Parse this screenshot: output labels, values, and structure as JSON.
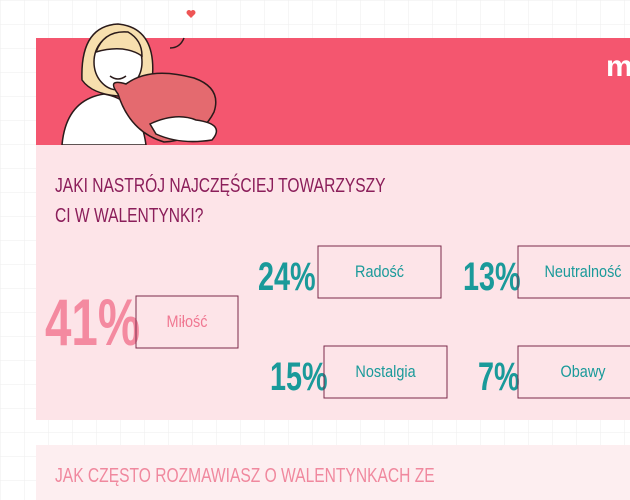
{
  "logo": "m",
  "section1": {
    "title_lines": [
      "JAKI NASTRÓJ NAJCZĘŚCIEJ TOWARZYSZY",
      "CI W WALENTYNKI?"
    ],
    "items": [
      {
        "value": "41%",
        "label": "Miłość"
      },
      {
        "value": "24%",
        "label": "Radość"
      },
      {
        "value": "13%",
        "label": "Neutralność"
      },
      {
        "value": "15%",
        "label": "Nostalgia"
      },
      {
        "value": "7%",
        "label": "Obawy"
      }
    ]
  },
  "section2": {
    "title": "JAK CZĘSTO ROZMAWIASZ O WALENTYNKACH ZE"
  }
}
